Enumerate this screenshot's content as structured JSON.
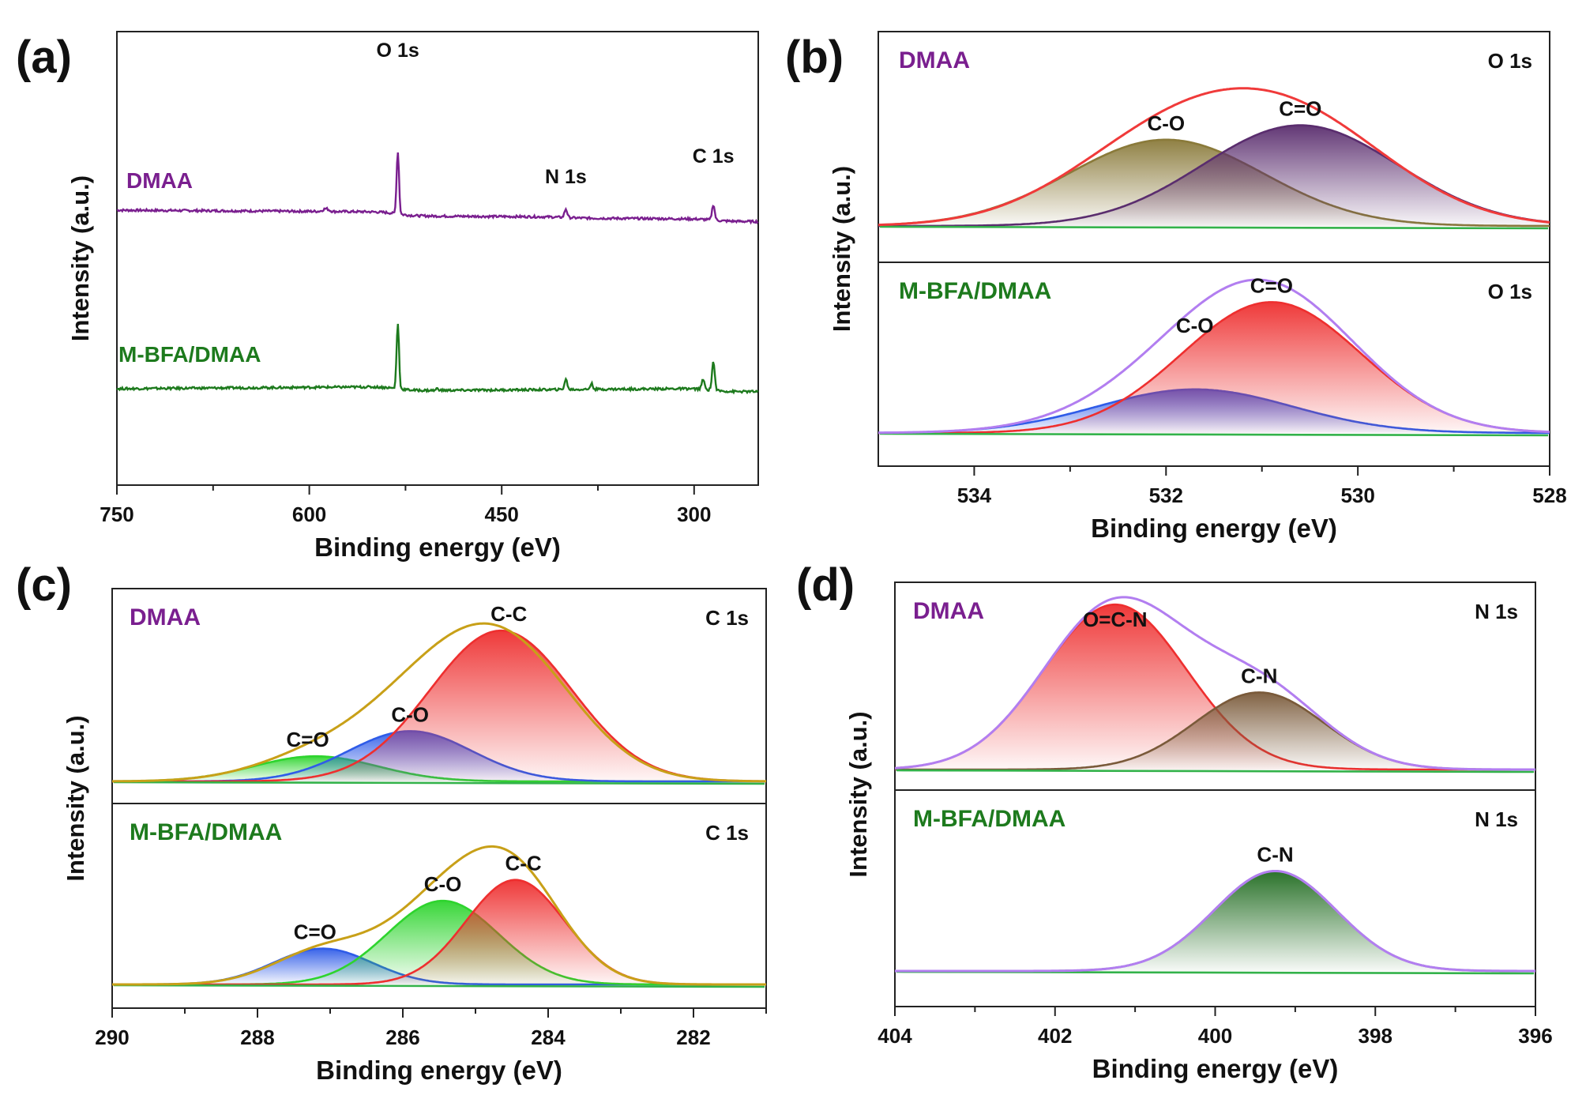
{
  "figure": {
    "panels": [
      {
        "label": "(a)"
      },
      {
        "label": "(b)"
      },
      {
        "label": "(c)"
      },
      {
        "label": "(d)"
      }
    ]
  },
  "colors": {
    "dmaa": "#7a1f8f",
    "mbfa": "#1d7a1d",
    "envelope_b": "#f03a3a",
    "envelope_violet": "#b27ef0",
    "envelope_gold": "#c8a018",
    "peak_red": "#ee2f2f",
    "peak_blue": "#2f5ce8",
    "peak_green": "#2ed42e",
    "peak_olive": "#8a7a3a",
    "peak_dark": "#5a2d6e",
    "peak_brown": "#7a5a3a",
    "peak_darkgreen": "#1f6b1f",
    "baseline": "#33b24a"
  },
  "chart_data": [
    {
      "panel": "(a)",
      "type": "line",
      "title": "",
      "xlabel": "Binding energy (eV)",
      "ylabel": "Intensity (a.u.)",
      "xlim": [
        750,
        250
      ],
      "xticks": [
        750,
        600,
        450,
        300
      ],
      "x_inverted": true,
      "series": [
        {
          "name": "DMAA",
          "color": "#7a1f8f",
          "baseline": 0.58,
          "slope": -0.07,
          "peaks": [
            [
              587,
              0.05,
              5
            ],
            [
              531,
              1.1,
              2.2
            ],
            [
              400,
              0.15,
              2.5
            ],
            [
              285,
              0.27,
              2.5
            ]
          ],
          "steps": [
            [
              531,
              -0.07,
              6
            ],
            [
              400,
              -0.02,
              6
            ],
            [
              285,
              -0.04,
              6
            ]
          ]
        },
        {
          "name": "M-BFA/DMAA",
          "color": "#1d7a1d",
          "baseline": 0.0,
          "slope": 0.08,
          "peaks": [
            [
              531,
              1.15,
              2.2
            ],
            [
              500,
              0.04,
              2
            ],
            [
              400,
              0.18,
              2.5
            ],
            [
              380,
              0.1,
              2.5
            ],
            [
              293,
              0.17,
              2.5
            ],
            [
              285,
              0.5,
              2.5
            ]
          ],
          "steps": [
            [
              531,
              -0.07,
              6
            ],
            [
              285,
              -0.06,
              6
            ]
          ]
        }
      ],
      "annotations": [
        "O 1s",
        "N 1s",
        "C 1s"
      ]
    },
    {
      "panel": "(b)",
      "type": "line",
      "xlabel": "Binding energy (eV)",
      "ylabel": "Intensity (a.u.)",
      "xlim": [
        535,
        528
      ],
      "xticks": [
        534,
        532,
        530,
        528
      ],
      "x_inverted": true,
      "subplots": [
        {
          "sample": "DMAA",
          "region": "O 1s",
          "envelope_color": "#f03a3a",
          "components": [
            {
              "name": "C-O",
              "center": 532.0,
              "fwhm": 2.4,
              "height": 0.6,
              "color": "#8a7a3a"
            },
            {
              "name": "C=O",
              "center": 530.6,
              "fwhm": 2.4,
              "height": 0.7,
              "color": "#5a2d6e"
            }
          ]
        },
        {
          "sample": "M-BFA/DMAA",
          "region": "O 1s",
          "envelope_color": "#b27ef0",
          "components": [
            {
              "name": "C-O",
              "center": 531.7,
              "fwhm": 2.4,
              "height": 0.3,
              "color": "#2f5ce8"
            },
            {
              "name": "C=O",
              "center": 530.9,
              "fwhm": 2.2,
              "height": 0.9,
              "color": "#ee2f2f"
            }
          ]
        }
      ]
    },
    {
      "panel": "(c)",
      "type": "line",
      "xlabel": "Binding energy (eV)",
      "ylabel": "Intensity (a.u.)",
      "xlim": [
        290,
        281
      ],
      "xticks": [
        290,
        288,
        286,
        284,
        282
      ],
      "x_inverted": true,
      "subplots": [
        {
          "sample": "DMAA",
          "region": "C 1s",
          "envelope_color": "#c8a018",
          "components": [
            {
              "name": "C=O",
              "center": 287.2,
              "fwhm": 2.0,
              "height": 0.15,
              "color": "#2ed42e"
            },
            {
              "name": "C-O",
              "center": 285.9,
              "fwhm": 2.0,
              "height": 0.3,
              "color": "#2f5ce8"
            },
            {
              "name": "C-C",
              "center": 284.65,
              "fwhm": 2.3,
              "height": 0.9,
              "color": "#ee2f2f"
            }
          ]
        },
        {
          "sample": "M-BFA/DMAA",
          "region": "C 1s",
          "envelope_color": "#c8a018",
          "components": [
            {
              "name": "C=O",
              "center": 287.1,
              "fwhm": 1.6,
              "height": 0.24,
              "color": "#2f5ce8"
            },
            {
              "name": "C-O",
              "center": 285.45,
              "fwhm": 1.8,
              "height": 0.56,
              "color": "#2ed42e"
            },
            {
              "name": "C-C",
              "center": 284.45,
              "fwhm": 1.6,
              "height": 0.7,
              "color": "#ee2f2f"
            }
          ]
        }
      ]
    },
    {
      "panel": "(d)",
      "type": "line",
      "xlabel": "Binding energy (eV)",
      "ylabel": "Intensity (a.u.)",
      "xlim": [
        404,
        396
      ],
      "xticks": [
        404,
        402,
        400,
        398,
        396
      ],
      "x_inverted": true,
      "subplots": [
        {
          "sample": "DMAA",
          "region": "N 1s",
          "envelope_color": "#b27ef0",
          "components": [
            {
              "name": "O=C-N",
              "center": 401.25,
              "fwhm": 2.1,
              "height": 0.92,
              "color": "#ee2f2f"
            },
            {
              "name": "C-N",
              "center": 399.45,
              "fwhm": 1.9,
              "height": 0.43,
              "color": "#7a5a3a"
            }
          ]
        },
        {
          "sample": "M-BFA/DMAA",
          "region": "N 1s",
          "envelope_color": "#b27ef0",
          "components": [
            {
              "name": "C-N",
              "center": 399.25,
              "fwhm": 1.8,
              "height": 0.62,
              "color": "#1f6b1f"
            }
          ]
        }
      ]
    }
  ]
}
